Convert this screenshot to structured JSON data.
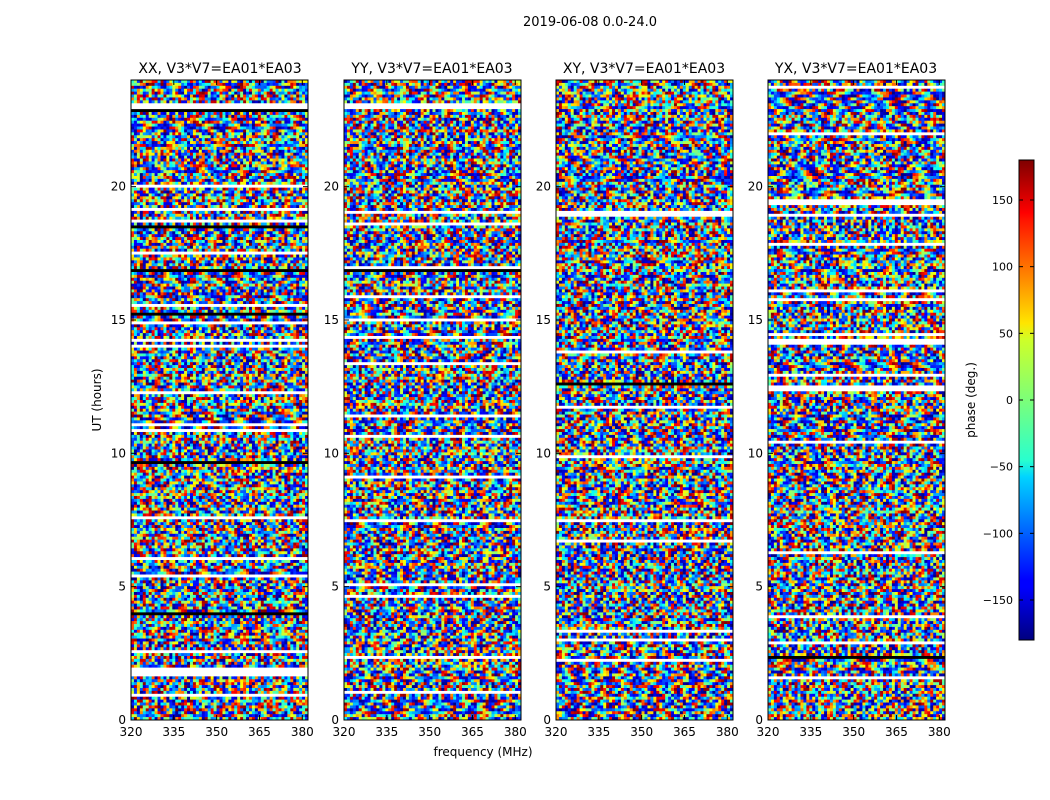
{
  "figure_title": "2019-06-08 0.0-24.0",
  "shared_xlabel": "frequency (MHz)",
  "shared_ylabel": "UT (hours)",
  "colorbar": {
    "label": "phase (deg.)",
    "range": [
      -180,
      180
    ],
    "ticks": [
      150,
      100,
      50,
      0,
      -50,
      -100,
      -150
    ],
    "colormap": "jet"
  },
  "chart_data": [
    {
      "type": "heatmap",
      "title": "XX, V3*V7=EA01*EA03",
      "xlabel": "",
      "ylabel": "UT (hours)",
      "xlim": [
        320,
        382
      ],
      "ylim": [
        0,
        24
      ],
      "x_ticks": [
        320,
        335,
        350,
        365,
        380
      ],
      "y_ticks": [
        0,
        5,
        10,
        15,
        20
      ],
      "value": "phase (deg.)"
    },
    {
      "type": "heatmap",
      "title": "YY, V3*V7=EA01*EA03",
      "xlabel": "frequency (MHz)",
      "ylabel": "",
      "xlim": [
        320,
        382
      ],
      "ylim": [
        0,
        24
      ],
      "x_ticks": [
        320,
        335,
        350,
        365,
        380
      ],
      "y_ticks": [
        0,
        5,
        10,
        15,
        20
      ],
      "value": "phase (deg.)"
    },
    {
      "type": "heatmap",
      "title": "XY, V3*V7=EA01*EA03",
      "xlabel": "",
      "ylabel": "",
      "xlim": [
        320,
        382
      ],
      "ylim": [
        0,
        24
      ],
      "x_ticks": [
        320,
        335,
        350,
        365,
        380
      ],
      "y_ticks": [
        0,
        5,
        10,
        15,
        20
      ],
      "value": "phase (deg.)"
    },
    {
      "type": "heatmap",
      "title": "YX, V3*V7=EA01*EA03",
      "xlabel": "",
      "ylabel": "",
      "xlim": [
        320,
        382
      ],
      "ylim": [
        0,
        24
      ],
      "x_ticks": [
        320,
        335,
        350,
        365,
        380
      ],
      "y_ticks": [
        0,
        5,
        10,
        15,
        20
      ],
      "value": "phase (deg.)"
    }
  ]
}
